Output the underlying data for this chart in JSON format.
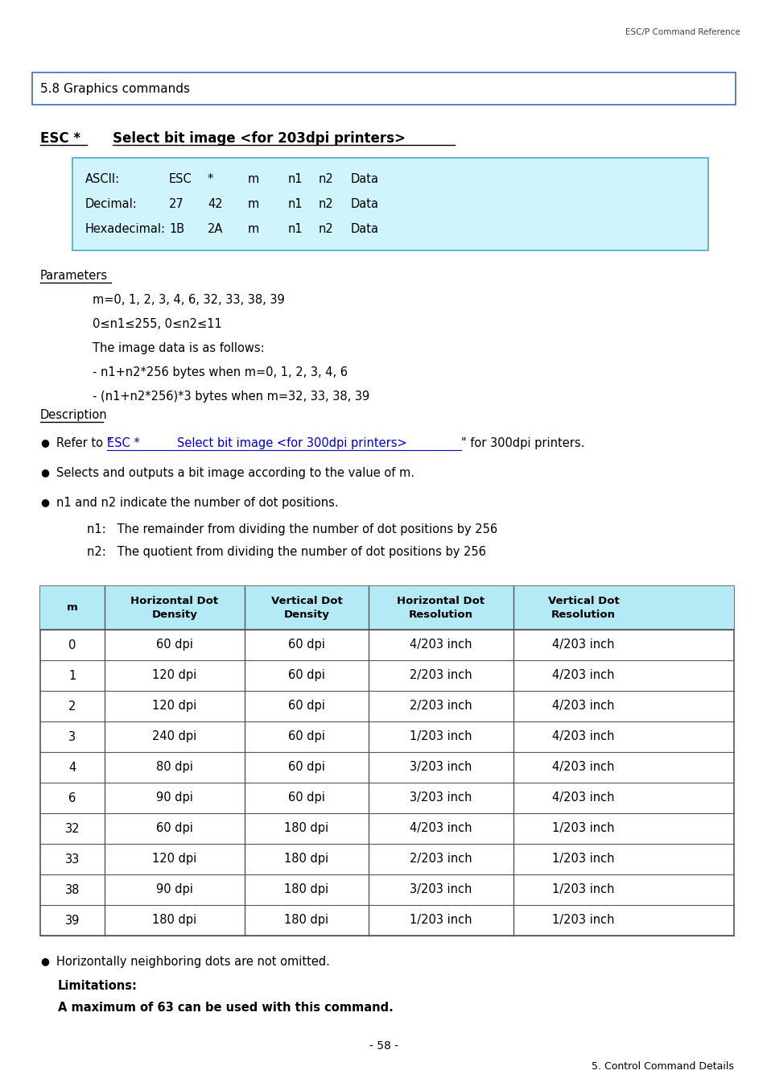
{
  "page_header": "ESC/P Command Reference",
  "section_title": "5.8 Graphics commands",
  "ascii_box_rows": [
    [
      "ASCII:",
      "ESC",
      "*",
      "m",
      "n1",
      "n2",
      "Data"
    ],
    [
      "Decimal:",
      "27",
      "42",
      "m",
      "n1",
      "n2",
      "Data"
    ],
    [
      "Hexadecimal:",
      "1B",
      "2A",
      "m",
      "n1",
      "n2",
      "Data"
    ]
  ],
  "ascii_box_bg": "#cff4fc",
  "ascii_box_border": "#4da6c8",
  "parameters_label": "Parameters",
  "parameters_lines": [
    "m=0, 1, 2, 3, 4, 6, 32, 33, 38, 39",
    "0≤n1≤255, 0≤n2≤11",
    "The image data is as follows:",
    "- n1+n2*256 bytes when m=0, 1, 2, 3, 4, 6",
    "- (n1+n2*256)*3 bytes when m=32, 33, 38, 39"
  ],
  "description_label": "Description",
  "bullet2": "Selects and outputs a bit image according to the value of m.",
  "bullet3": "n1 and n2 indicate the number of dot positions.",
  "sub_bullet1": "n1:   The remainder from dividing the number of dot positions by 256",
  "sub_bullet2": "n2:   The quotient from dividing the number of dot positions by 256",
  "table_headers": [
    "m",
    "Horizontal Dot\nDensity",
    "Vertical Dot\nDensity",
    "Horizontal Dot\nResolution",
    "Vertical Dot\nResolution"
  ],
  "table_header_bg": "#b3eaf5",
  "table_rows": [
    [
      "0",
      "60 dpi",
      "60 dpi",
      "4/203 inch",
      "4/203 inch"
    ],
    [
      "1",
      "120 dpi",
      "60 dpi",
      "2/203 inch",
      "4/203 inch"
    ],
    [
      "2",
      "120 dpi",
      "60 dpi",
      "2/203 inch",
      "4/203 inch"
    ],
    [
      "3",
      "240 dpi",
      "60 dpi",
      "1/203 inch",
      "4/203 inch"
    ],
    [
      "4",
      "80 dpi",
      "60 dpi",
      "3/203 inch",
      "4/203 inch"
    ],
    [
      "6",
      "90 dpi",
      "60 dpi",
      "3/203 inch",
      "4/203 inch"
    ],
    [
      "32",
      "60 dpi",
      "180 dpi",
      "4/203 inch",
      "1/203 inch"
    ],
    [
      "33",
      "120 dpi",
      "180 dpi",
      "2/203 inch",
      "1/203 inch"
    ],
    [
      "38",
      "90 dpi",
      "180 dpi",
      "3/203 inch",
      "1/203 inch"
    ],
    [
      "39",
      "180 dpi",
      "180 dpi",
      "1/203 inch",
      "1/203 inch"
    ]
  ],
  "footer_bullet": "Horizontally neighboring dots are not omitted.",
  "limitations_label": "Limitations:",
  "limitations_text": "A maximum of 63 can be used with this command.",
  "page_number": "- 58 -",
  "page_footer": "5. Control Command Details",
  "bg_color": "#ffffff"
}
